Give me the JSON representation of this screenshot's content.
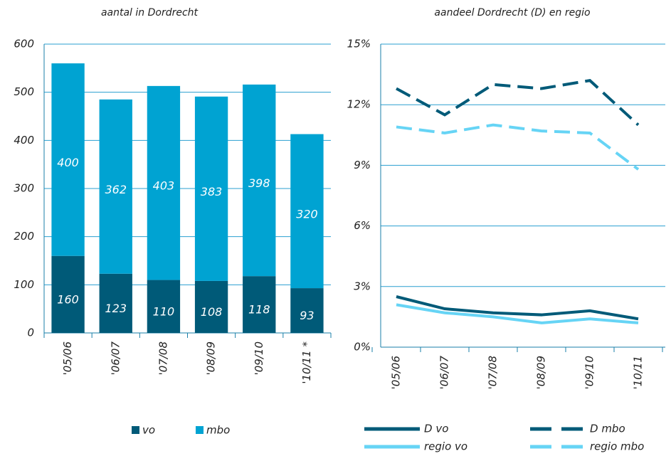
{
  "chart_data": [
    {
      "type": "bar",
      "stacked": true,
      "title": "aantal in Dordrecht",
      "categories": [
        "'05/06",
        "'06/07",
        "'07/08",
        "'08/09",
        "'09/10",
        "'10/11 *"
      ],
      "series": [
        {
          "name": "vo",
          "color": "#005a78",
          "values": [
            160,
            123,
            110,
            108,
            118,
            93
          ]
        },
        {
          "name": "mbo",
          "color": "#00a3d2",
          "values": [
            400,
            362,
            403,
            383,
            398,
            320
          ]
        }
      ],
      "ylim": [
        0,
        600
      ],
      "yticks": [
        0,
        100,
        200,
        300,
        400,
        500,
        600
      ],
      "grid": true,
      "legend": "bottom"
    },
    {
      "type": "line",
      "title": "aandeel Dordrecht (D) en regio",
      "categories": [
        "'05/06",
        "'06/07",
        "'07/08",
        "'08/09",
        "'09/10",
        "'10/11"
      ],
      "series": [
        {
          "name": "D  vo",
          "color": "#005a78",
          "style": "solid",
          "values": [
            2.5,
            1.9,
            1.7,
            1.6,
            1.8,
            1.4
          ]
        },
        {
          "name": "D  mbo",
          "color": "#005a78",
          "style": "dashed",
          "values": [
            12.8,
            11.5,
            13.0,
            12.8,
            13.2,
            11.0
          ]
        },
        {
          "name": "regio vo",
          "color": "#66d4f5",
          "style": "solid",
          "values": [
            2.1,
            1.7,
            1.5,
            1.2,
            1.4,
            1.2
          ]
        },
        {
          "name": "regio mbo",
          "color": "#66d4f5",
          "style": "dashed",
          "values": [
            10.9,
            10.6,
            11.0,
            10.7,
            10.6,
            8.8
          ]
        }
      ],
      "ylim": [
        0,
        15
      ],
      "yticks": [
        {
          "value": 0,
          "label": "0%"
        },
        {
          "value": 3,
          "label": "3%"
        },
        {
          "value": 6,
          "label": "6%"
        },
        {
          "value": 9,
          "label": "9%"
        },
        {
          "value": 12,
          "label": "12%"
        },
        {
          "value": 15,
          "label": "15%"
        }
      ],
      "grid": true,
      "legend": "bottom"
    }
  ]
}
